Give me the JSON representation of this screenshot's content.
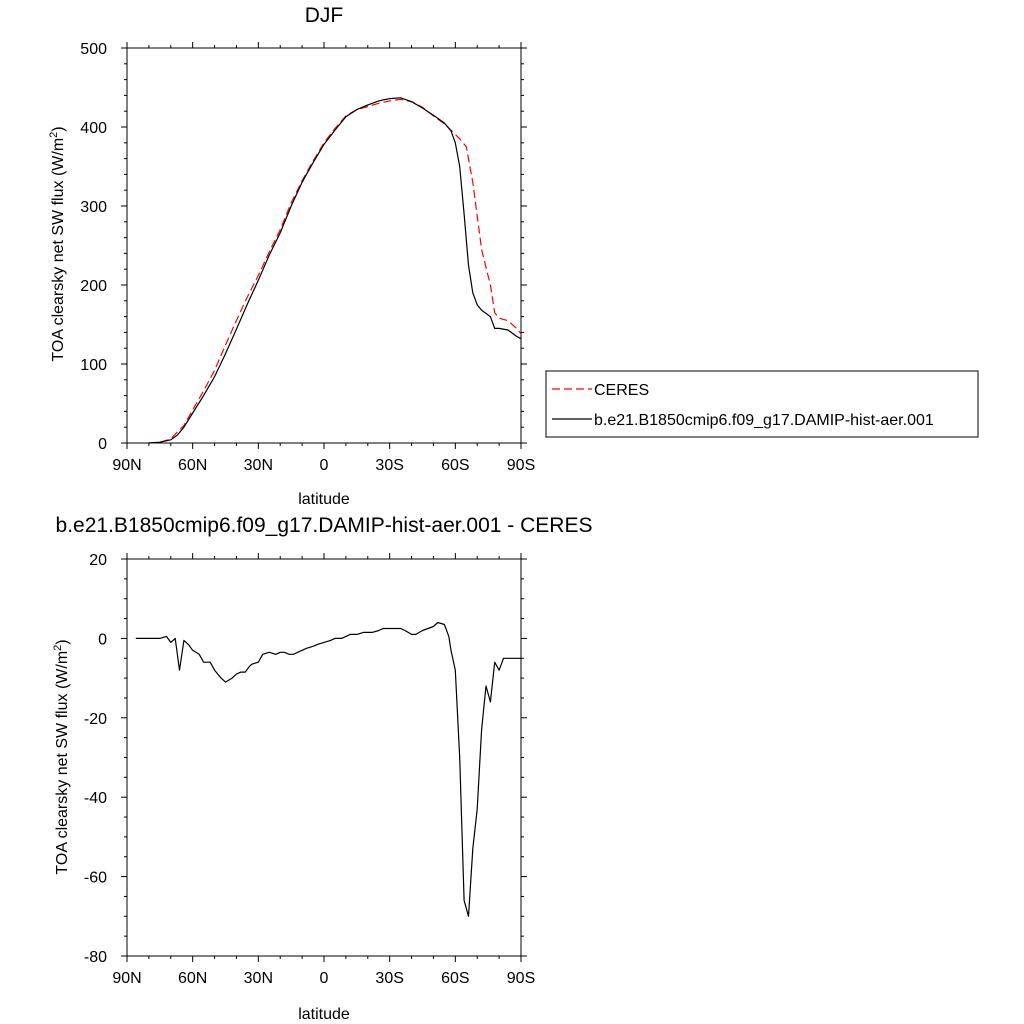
{
  "chart_data": [
    {
      "type": "line",
      "title": "DJF",
      "xlabel": "latitude",
      "ylabel_main": "TOA clearsky net SW flux (W/m",
      "ylabel_sup": "2",
      "ylabel_end": ")",
      "xlim": [
        90,
        -90
      ],
      "ylim": [
        0,
        500
      ],
      "xticks": [
        {
          "value": 90,
          "label": "90N"
        },
        {
          "value": 60,
          "label": "60N"
        },
        {
          "value": 30,
          "label": "30N"
        },
        {
          "value": 0,
          "label": "0"
        },
        {
          "value": -30,
          "label": "30S"
        },
        {
          "value": -60,
          "label": "60S"
        },
        {
          "value": -90,
          "label": "90S"
        }
      ],
      "yticks": [
        0,
        100,
        200,
        300,
        400,
        500
      ],
      "legend": {
        "placement": "right",
        "entries": [
          {
            "label": "CERES",
            "color": "#ff0000",
            "dash": "dashed"
          },
          {
            "label": "b.e21.B1850cmip6.f09_g17.DAMIP-hist-aer.001",
            "color": "#000000",
            "dash": "solid"
          }
        ]
      },
      "series": [
        {
          "name": "CERES",
          "color": "#ff0000",
          "dash": "dashed",
          "x": [
            80,
            75,
            70,
            67,
            64,
            60,
            55,
            50,
            45,
            40,
            35,
            30,
            25,
            20,
            15,
            10,
            5,
            0,
            -5,
            -10,
            -15,
            -20,
            -25,
            -30,
            -35,
            -40,
            -45,
            -50,
            -55,
            -58,
            -62,
            -65,
            -68,
            -72,
            -76,
            -78,
            -80,
            -84,
            -88,
            -90
          ],
          "y": [
            0,
            1,
            5,
            14,
            22,
            42,
            66,
            92,
            124,
            155,
            185,
            212,
            242,
            270,
            304,
            332,
            357,
            380,
            398,
            414,
            422,
            426,
            430,
            433,
            435,
            432,
            425,
            414,
            404,
            396,
            385,
            375,
            330,
            245,
            200,
            165,
            158,
            155,
            145,
            138
          ]
        },
        {
          "name": "b.e21.B1850cmip6.f09_g17.DAMIP-hist-aer.001",
          "color": "#000000",
          "dash": "solid",
          "x": [
            80,
            75,
            70,
            67,
            64,
            60,
            55,
            50,
            45,
            40,
            35,
            30,
            25,
            20,
            15,
            10,
            5,
            0,
            -5,
            -10,
            -15,
            -20,
            -25,
            -30,
            -35,
            -40,
            -45,
            -50,
            -55,
            -58,
            -60,
            -62,
            -64,
            -66,
            -68,
            -70,
            -72,
            -76,
            -78,
            -80,
            -84,
            -88,
            -90
          ],
          "y": [
            0,
            1,
            4,
            10,
            20,
            38,
            60,
            84,
            113,
            144,
            176,
            206,
            238,
            266,
            300,
            330,
            355,
            378,
            396,
            413,
            422,
            428,
            433,
            436,
            437,
            432,
            424,
            415,
            405,
            395,
            380,
            350,
            290,
            225,
            190,
            175,
            168,
            160,
            145,
            145,
            143,
            135,
            132
          ]
        }
      ]
    },
    {
      "type": "line",
      "title": "b.e21.B1850cmip6.f09_g17.DAMIP-hist-aer.001 - CERES",
      "xlabel": "latitude",
      "ylabel_main": "TOA clearsky net SW flux (W/m",
      "ylabel_sup": "2",
      "ylabel_end": ")",
      "xlim": [
        90,
        -90
      ],
      "ylim": [
        -80,
        20
      ],
      "xticks": [
        {
          "value": 90,
          "label": "90N"
        },
        {
          "value": 60,
          "label": "60N"
        },
        {
          "value": 30,
          "label": "30N"
        },
        {
          "value": 0,
          "label": "0"
        },
        {
          "value": -30,
          "label": "30S"
        },
        {
          "value": -60,
          "label": "60S"
        },
        {
          "value": -90,
          "label": "90S"
        }
      ],
      "yticks": [
        -80,
        -60,
        -40,
        -20,
        0,
        20
      ],
      "series": [
        {
          "color": "#000000",
          "dash": "solid",
          "x": [
            86,
            75,
            72,
            70,
            68,
            66,
            64,
            62,
            60,
            57,
            55,
            52,
            50,
            47,
            45,
            42,
            40,
            38,
            36,
            34,
            33,
            30,
            28,
            25,
            22,
            20,
            18,
            16,
            14,
            12,
            10,
            8,
            5,
            3,
            0,
            -3,
            -5,
            -8,
            -10,
            -12,
            -15,
            -18,
            -20,
            -22,
            -25,
            -27,
            -30,
            -32,
            -35,
            -37,
            -40,
            -42,
            -45,
            -50,
            -52,
            -55,
            -57,
            -58,
            -60,
            -62,
            -64,
            -66,
            -68,
            -70,
            -72,
            -74,
            -76,
            -78,
            -80,
            -82,
            -84,
            -86,
            -88,
            -90
          ],
          "y": [
            0,
            0,
            0.5,
            -1,
            0,
            -8,
            -0.5,
            -1.5,
            -3,
            -4,
            -6,
            -6,
            -8,
            -10,
            -11,
            -10,
            -9,
            -8.5,
            -8.5,
            -7,
            -6.5,
            -6,
            -4,
            -3.5,
            -4,
            -3.5,
            -3.5,
            -4,
            -4,
            -3.5,
            -3,
            -2.5,
            -2,
            -1.5,
            -1,
            -0.5,
            0,
            0,
            0.5,
            1,
            1,
            1.5,
            1.5,
            1.5,
            2,
            2.5,
            2.5,
            2.5,
            2.5,
            2,
            1,
            1,
            2,
            3,
            4,
            3.5,
            0.5,
            -3,
            -8,
            -30,
            -66,
            -70,
            -53,
            -43,
            -23,
            -12,
            -16,
            -6,
            -8,
            -5,
            -5,
            -5,
            -5,
            -5
          ]
        }
      ]
    }
  ]
}
